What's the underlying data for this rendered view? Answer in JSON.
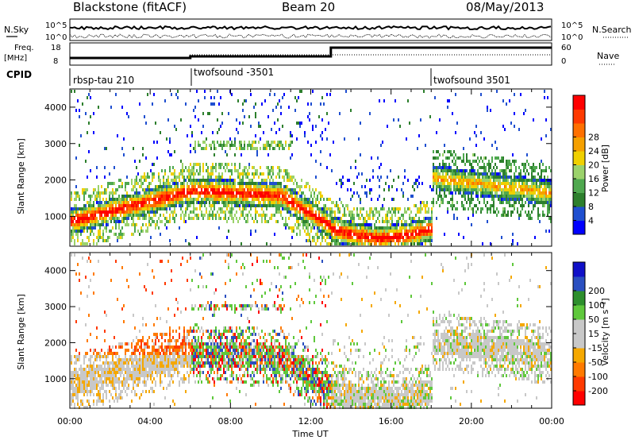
{
  "header": {
    "radar": "Blackstone (fitACF)",
    "beam": "Beam 20",
    "date": "08/May/2013"
  },
  "top_panels": {
    "nsky_label": "N.Sky",
    "nsky_ticks": [
      "10^5",
      "10^0"
    ],
    "nsearch_label": "N.Search",
    "nsearch_ticks": [
      "10^5",
      "10^0"
    ],
    "freq_label_1": "Freq.",
    "freq_label_2": "[MHz]",
    "freq_ticks": [
      "18",
      "8"
    ],
    "nave_label": "Nave",
    "nave_ticks": [
      "60",
      "0"
    ],
    "cpid_label": "CPID",
    "cpid_segments": [
      "rbsp-tau 210",
      "twofsound -3501",
      "twofsound 3501"
    ]
  },
  "chart_data": [
    {
      "type": "heatmap",
      "ylabel": "Slant Range [km]",
      "y_ticks": [
        1000,
        2000,
        3000,
        4000
      ],
      "ylim": [
        180,
        4500
      ],
      "x_ticks": [
        "00:00",
        "04:00",
        "08:00",
        "12:00",
        "16:00",
        "20:00",
        "00:00"
      ],
      "xlim_hours": [
        0,
        24
      ],
      "colorbar": {
        "label": "Power [dB]",
        "ticks": [
          4,
          8,
          12,
          16,
          20,
          24,
          28
        ],
        "range": [
          0,
          30
        ],
        "colors": [
          "#0000ff",
          "#1f4fd0",
          "#2d7f2d",
          "#4fa84f",
          "#9bd26b",
          "#f0d000",
          "#f5a000",
          "#ff7000",
          "#ff3a00",
          "#ff0000"
        ]
      }
    },
    {
      "type": "heatmap",
      "ylabel": "Slant Range [km]",
      "y_ticks": [
        1000,
        2000,
        3000,
        4000
      ],
      "ylim": [
        180,
        4500
      ],
      "x_ticks": [
        "00:00",
        "04:00",
        "08:00",
        "12:00",
        "16:00",
        "20:00",
        "00:00"
      ],
      "xlim_hours": [
        0,
        24
      ],
      "xlabel": "Time UT",
      "colorbar": {
        "label": "Velocity [m s⁻¹]",
        "ticks": [
          -200,
          -100,
          -50,
          -15,
          15,
          50,
          100,
          200
        ],
        "tick_labels": [
          "-200",
          "-100",
          "-50",
          "-15",
          "15",
          "50",
          "100",
          "200"
        ],
        "colors": [
          "#ff0000",
          "#ff3a00",
          "#ff7a00",
          "#f5a800",
          "#c8c8c8",
          "#c8c8c8",
          "#5fc83c",
          "#2d8f2d",
          "#2a4fc0",
          "#1010c8"
        ]
      }
    }
  ]
}
